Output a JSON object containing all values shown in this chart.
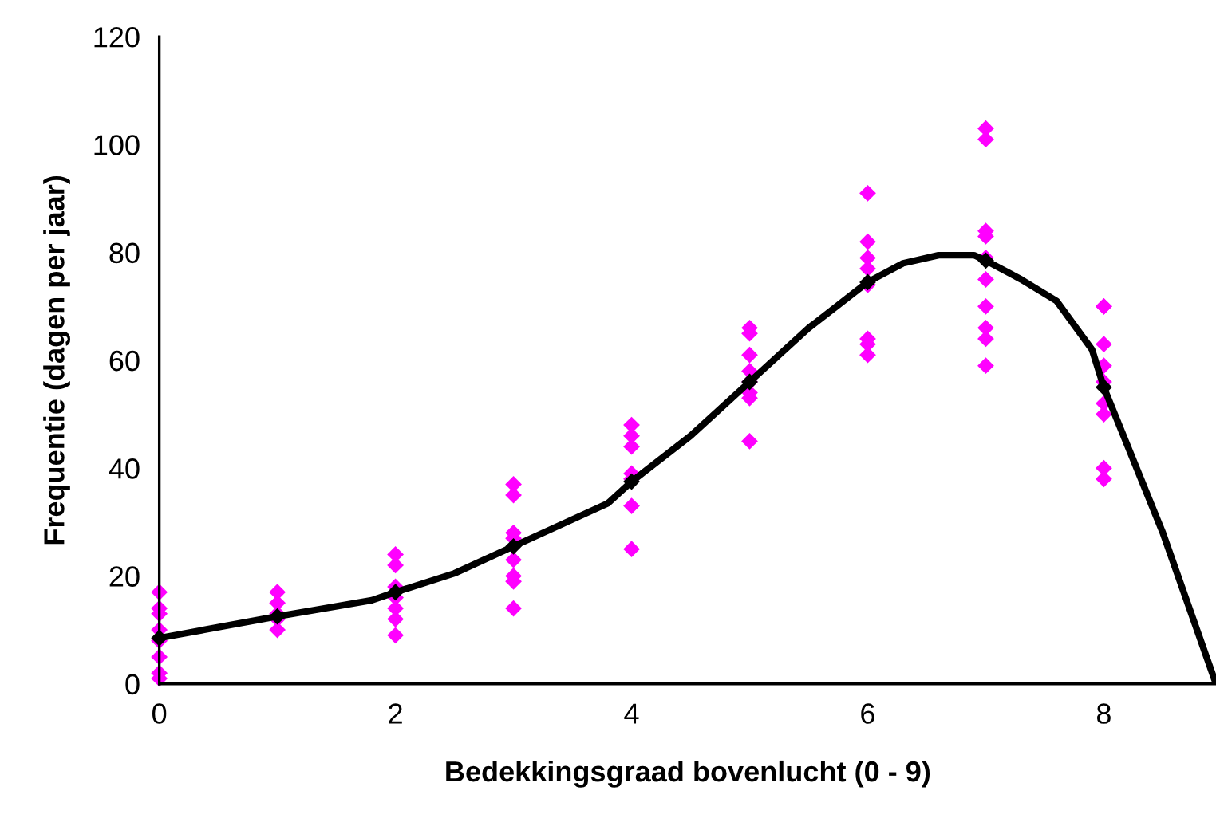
{
  "chart_data": {
    "type": "scatter",
    "xlabel": "Bedekkingsgraad bovenlucht (0 - 9)",
    "ylabel": "Frequentie (dagen per jaar)",
    "xlim": [
      0,
      8.95
    ],
    "xticks": [
      0,
      2,
      4,
      6,
      8
    ],
    "ylim": [
      0,
      120
    ],
    "yticks": [
      0,
      20,
      40,
      60,
      80,
      100,
      120
    ],
    "grid": false,
    "legend": false,
    "series": [
      {
        "color": "#ff00ff",
        "marker": "diamond",
        "x": [
          0,
          0,
          0,
          0,
          0,
          0,
          0,
          0,
          1,
          1,
          1,
          1,
          1,
          2,
          2,
          2,
          2,
          2,
          2,
          2,
          3,
          3,
          3,
          3,
          3,
          3,
          3,
          3,
          4,
          4,
          4,
          4,
          4,
          4,
          4,
          5,
          5,
          5,
          5,
          5,
          5,
          5,
          5,
          6,
          6,
          6,
          6,
          6,
          6,
          6,
          6,
          7,
          7,
          7,
          7,
          7,
          7,
          7,
          7,
          7,
          7,
          8,
          8,
          8,
          8,
          8,
          8,
          8,
          8,
          8
        ],
        "values": [
          17,
          14,
          13,
          10,
          8,
          5,
          2,
          1,
          17,
          15,
          13,
          12,
          10,
          24,
          22,
          18,
          16,
          14,
          12,
          9,
          37,
          35,
          28,
          27,
          23,
          20,
          19,
          14,
          48,
          46,
          44,
          39,
          38,
          33,
          25,
          66,
          65,
          61,
          58,
          56,
          54,
          53,
          45,
          91,
          82,
          79,
          77,
          74,
          64,
          63,
          61,
          103,
          101,
          84,
          83,
          79,
          75,
          70,
          66,
          64,
          59,
          70,
          70,
          63,
          59,
          56,
          52,
          50,
          40,
          38
        ]
      },
      {
        "type": "line",
        "color": "#000000",
        "marker": "none",
        "line_style": "solid",
        "x": [
          0,
          1,
          1.8,
          2,
          2.5,
          3,
          3.5,
          3.8,
          4,
          4.5,
          5,
          5.5,
          6,
          6.3,
          6.6,
          6.9,
          7,
          7.3,
          7.6,
          7.9,
          8,
          8.5,
          8.95
        ],
        "values": [
          8.5,
          12.5,
          15.5,
          17,
          20.5,
          25.5,
          30.5,
          33.5,
          37.5,
          46,
          56,
          66,
          74.5,
          78,
          79.5,
          79.5,
          78.5,
          75,
          71,
          62,
          55,
          28,
          0
        ]
      },
      {
        "type": "scatter",
        "color": "#000000",
        "marker": "diamond",
        "x": [
          0,
          1,
          2,
          3,
          4,
          5,
          6,
          7,
          8
        ],
        "values": [
          8.5,
          12.5,
          17,
          25.5,
          37.5,
          56,
          74.5,
          78.5,
          55
        ]
      }
    ]
  }
}
